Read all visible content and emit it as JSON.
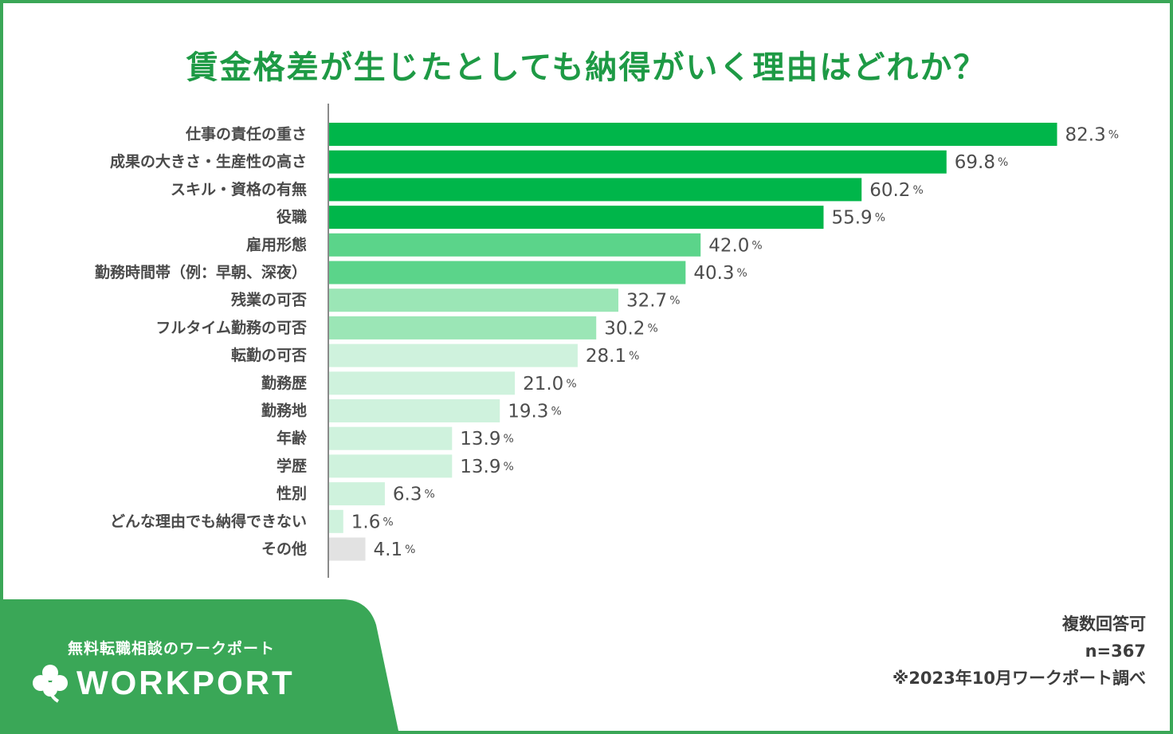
{
  "title": "賃金格差が生じたとしても納得がいく理由はどれか？",
  "chart_data": {
    "type": "bar",
    "orientation": "horizontal",
    "title": "賃金格差が生じたとしても納得がいく理由はどれか？",
    "unit": "%",
    "xlim": [
      0,
      100
    ],
    "categories": [
      "仕事の責任の重さ",
      "成果の大きさ・生産性の高さ",
      "スキル・資格の有無",
      "役職",
      "雇用形態",
      "勤務時間帯（例：早朝、深夜）",
      "残業の可否",
      "フルタイム勤務の可否",
      "転勤の可否",
      "勤務歴",
      "勤務地",
      "年齢",
      "学歴",
      "性別",
      "どんな理由でも納得できない",
      "その他"
    ],
    "values": [
      82.3,
      69.8,
      60.2,
      55.9,
      42.0,
      40.3,
      32.7,
      30.2,
      28.1,
      21.0,
      19.3,
      13.9,
      13.9,
      6.3,
      1.6,
      4.1
    ],
    "value_labels": [
      "82.3",
      "69.8",
      "60.2",
      "55.9",
      "42.0",
      "40.3",
      "32.7",
      "30.2",
      "28.1",
      "21.0",
      "19.3",
      "13.9",
      "13.9",
      "6.3",
      "1.6",
      "4.1"
    ],
    "colors": [
      "#00b64a",
      "#00b64a",
      "#00b64a",
      "#00b64a",
      "#5bd48a",
      "#5bd48a",
      "#9be6b6",
      "#9be6b6",
      "#cff2dd",
      "#cff2dd",
      "#cff2dd",
      "#cff2dd",
      "#cff2dd",
      "#cff2dd",
      "#cff2dd",
      "#e2e2e2"
    ]
  },
  "brand": {
    "tagline": "無料転職相談のワークポート",
    "logo_text": "WORKPORT",
    "panel_color": "#3aa757"
  },
  "notes": {
    "multiple": "複数回答可",
    "sample": "n=367",
    "source": "※2023年10月ワークポート調べ"
  },
  "colors": {
    "frame": "#3aa757",
    "title": "#1e9a45"
  }
}
